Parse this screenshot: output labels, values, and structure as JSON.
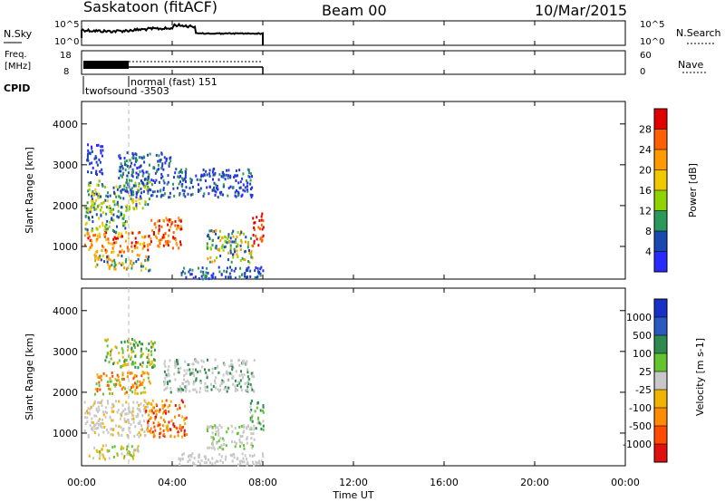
{
  "chart_data": {
    "type": "radar range-time plot",
    "title": {
      "left": "Saskatoon (fitACF)",
      "center": "Beam 00",
      "right": "10/Mar/2015"
    },
    "time_axis": {
      "label": "Time UT",
      "ticks": [
        "00:00",
        "04:00",
        "08:00",
        "12:00",
        "16:00",
        "20:00",
        "00:00"
      ],
      "range_hours": [
        0,
        24
      ]
    },
    "panels": {
      "noise": {
        "left_label": "N.Sky",
        "right_label": "N.Search",
        "left_ticks": [
          "10^5",
          "10^0"
        ],
        "right_ticks": [
          "10^5",
          "10^0"
        ],
        "data_end_hours": 8.0
      },
      "freq": {
        "left_label_1": "Freq.",
        "left_label_2": "[MHz]",
        "right_label": "Nave",
        "left_ticks": [
          "18",
          "8"
        ],
        "right_ticks": [
          "60",
          "0"
        ],
        "data_end_hours": 8.0
      },
      "cpid": {
        "label": "CPID",
        "modes": [
          {
            "name": "twofsound",
            "id": "-3503",
            "start_hours": 0.0
          },
          {
            "name": "normal (fast)",
            "id": "151",
            "start_hours": 1.8
          }
        ]
      },
      "power": {
        "ylabel": "Slant Range [km]",
        "yticks": [
          1000,
          2000,
          3000,
          4000
        ],
        "yrange": [
          200,
          4550
        ],
        "colorbar_label": "Power [dB]",
        "colorbar_ticks": [
          "28",
          "24",
          "20",
          "16",
          "12",
          "8",
          "4"
        ],
        "colorbar_colors": [
          "#e00000",
          "#ff6000",
          "#ff9a00",
          "#f0c800",
          "#8fd400",
          "#2a9a5a",
          "#1a48b0",
          "#2a2aff"
        ]
      },
      "velocity": {
        "ylabel": "Slant Range [km]",
        "yticks": [
          1000,
          2000,
          3000,
          4000
        ],
        "yrange": [
          200,
          4550
        ],
        "colorbar_label": "Velocity [m s-1]",
        "colorbar_ticks": [
          "1000",
          "500",
          "100",
          "25",
          "-25",
          "-100",
          "-500",
          "-1000"
        ],
        "colorbar_colors": [
          "#1830c8",
          "#2a5ac0",
          "#2e8a4e",
          "#64c430",
          "#c8c8c8",
          "#f0b400",
          "#ff8c00",
          "#ff4a00",
          "#e01010"
        ]
      }
    },
    "scatter_regions": {
      "power": [
        {
          "t": [
            0.1,
            3.0
          ],
          "r": [
            850,
            1350
          ],
          "levels": [
            "#ff9a00",
            "#ff6000",
            "#e00000",
            "#f0c800"
          ]
        },
        {
          "t": [
            3.0,
            4.4
          ],
          "r": [
            950,
            1700
          ],
          "levels": [
            "#ff6000",
            "#e00000",
            "#ff9a00"
          ]
        },
        {
          "t": [
            0.1,
            2.0
          ],
          "r": [
            1350,
            2000
          ],
          "levels": [
            "#2a9a5a",
            "#8fd400",
            "#1a48b0",
            "#f0c800"
          ]
        },
        {
          "t": [
            0.2,
            3.0
          ],
          "r": [
            1900,
            2600
          ],
          "levels": [
            "#1a48b0",
            "#2a9a5a",
            "#8fd400",
            "#f0c800"
          ]
        },
        {
          "t": [
            1.6,
            3.9
          ],
          "r": [
            2200,
            3300
          ],
          "levels": [
            "#2a2aff",
            "#1a48b0",
            "#2a9a5a"
          ]
        },
        {
          "t": [
            4.0,
            7.5
          ],
          "r": [
            2200,
            2900
          ],
          "levels": [
            "#1a48b0",
            "#2a9a5a",
            "#2a2aff"
          ]
        },
        {
          "t": [
            0.5,
            3.0
          ],
          "r": [
            400,
            800
          ],
          "levels": [
            "#1a48b0",
            "#2a9a5a",
            "#f0c800",
            "#ff9a00"
          ]
        },
        {
          "t": [
            5.5,
            7.5
          ],
          "r": [
            600,
            1400
          ],
          "levels": [
            "#1a48b0",
            "#2a9a5a",
            "#8fd400",
            "#ff9a00"
          ]
        },
        {
          "t": [
            7.5,
            8.0
          ],
          "r": [
            1000,
            1800
          ],
          "levels": [
            "#e00000",
            "#ff6000"
          ]
        },
        {
          "t": [
            4.2,
            8.0
          ],
          "r": [
            200,
            500
          ],
          "levels": [
            "#1a48b0",
            "#2a2aff",
            "#2a9a5a"
          ]
        },
        {
          "t": [
            0.2,
            0.9
          ],
          "r": [
            2700,
            3500
          ],
          "levels": [
            "#1a48b0",
            "#2a2aff"
          ]
        }
      ],
      "velocity": [
        {
          "t": [
            0.1,
            3.0
          ],
          "r": [
            900,
            1800
          ],
          "levels": [
            "#c8c8c8",
            "#c8c8c8",
            "#c8c8c8",
            "#f0b400"
          ]
        },
        {
          "t": [
            2.8,
            4.6
          ],
          "r": [
            900,
            1800
          ],
          "levels": [
            "#ff8c00",
            "#ff4a00",
            "#f0b400",
            "#e01010"
          ]
        },
        {
          "t": [
            0.5,
            3.0
          ],
          "r": [
            1950,
            2500
          ],
          "levels": [
            "#ff8c00",
            "#f0b400",
            "#ff4a00",
            "#64c430"
          ]
        },
        {
          "t": [
            1.0,
            3.2
          ],
          "r": [
            2600,
            3300
          ],
          "levels": [
            "#2e8a4e",
            "#64c430",
            "#f0b400"
          ]
        },
        {
          "t": [
            3.6,
            7.6
          ],
          "r": [
            2000,
            2800
          ],
          "levels": [
            "#c8c8c8",
            "#c8c8c8",
            "#2e8a4e"
          ]
        },
        {
          "t": [
            0.3,
            2.5
          ],
          "r": [
            350,
            700
          ],
          "levels": [
            "#c8c8c8",
            "#64c430",
            "#f0b400"
          ]
        },
        {
          "t": [
            5.5,
            7.6
          ],
          "r": [
            600,
            1200
          ],
          "levels": [
            "#c8c8c8",
            "#c8c8c8",
            "#64c430"
          ]
        },
        {
          "t": [
            7.4,
            8.0
          ],
          "r": [
            1000,
            1800
          ],
          "levels": [
            "#64c430",
            "#2e8a4e",
            "#c8c8c8"
          ]
        },
        {
          "t": [
            4.2,
            8.0
          ],
          "r": [
            200,
            500
          ],
          "levels": [
            "#c8c8c8",
            "#c8c8c8"
          ]
        }
      ]
    }
  }
}
